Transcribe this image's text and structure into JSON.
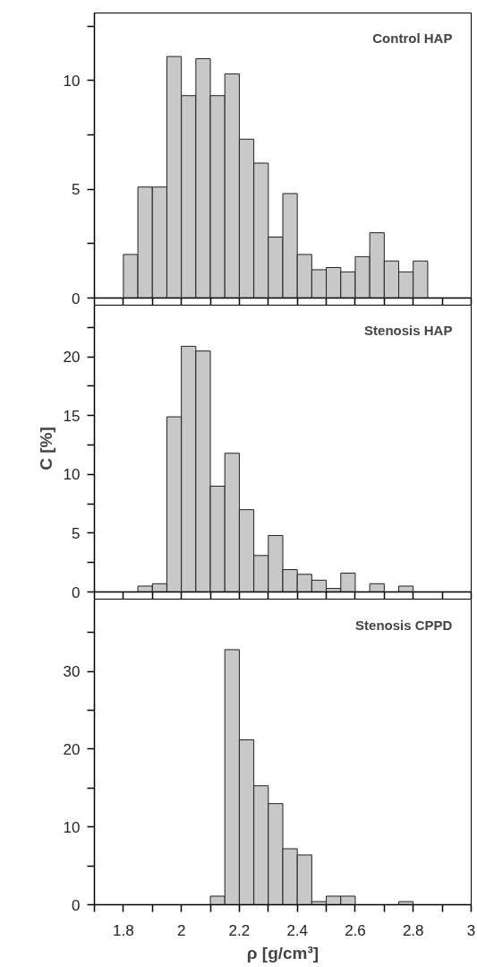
{
  "chart_data": [
    {
      "type": "histogram",
      "title": "Control HAP",
      "color": "#c8c8c8",
      "bins": [
        1.8,
        1.85,
        1.9,
        1.95,
        2.0,
        2.05,
        2.1,
        2.15,
        2.2,
        2.25,
        2.3,
        2.35,
        2.4,
        2.45,
        2.5,
        2.55,
        2.6,
        2.65,
        2.7,
        2.75,
        2.8,
        2.85
      ],
      "values": [
        2.0,
        5.1,
        5.1,
        11.1,
        9.3,
        11.0,
        9.3,
        10.3,
        7.3,
        6.2,
        2.8,
        4.8,
        2.0,
        1.3,
        1.4,
        1.2,
        1.9,
        3.0,
        1.7,
        1.2,
        1.7
      ],
      "xlim": [
        1.7,
        3.0
      ],
      "xticks": [
        {
          "value": 1.7,
          "label": null
        },
        1.8,
        {
          "value": 1.9,
          "label": null
        },
        2,
        {
          "value": 2.1,
          "label": null
        },
        2.2,
        {
          "value": 2.3,
          "label": null
        },
        2.4,
        {
          "value": 2.5,
          "label": null
        },
        2.6,
        {
          "value": 2.7,
          "label": null
        },
        2.8,
        {
          "value": 2.9,
          "label": null
        },
        3
      ],
      "ylim": [
        0,
        13.1
      ],
      "yticks": [
        0,
        {
          "value": 2.5,
          "label": null
        },
        5,
        {
          "value": 7.5,
          "label": null
        },
        10,
        {
          "value": 12.5,
          "label": null
        }
      ],
      "tick_labels": "y",
      "grid": false
    },
    {
      "type": "histogram",
      "title": "Stenosis HAP",
      "ylabel": "C [%]",
      "color": "#c8c8c8",
      "bins": [
        1.85,
        1.9,
        1.95,
        2.0,
        2.05,
        2.1,
        2.15,
        2.2,
        2.25,
        2.3,
        2.35,
        2.4,
        2.45,
        2.5,
        2.55,
        2.6,
        2.65,
        2.7,
        2.75,
        2.8
      ],
      "values": [
        0.5,
        0.7,
        14.9,
        20.9,
        20.5,
        9.0,
        11.8,
        7.0,
        3.1,
        4.8,
        1.9,
        1.5,
        1.0,
        0.3,
        1.6,
        0,
        0.7,
        0,
        0.5
      ],
      "xlim": [
        1.7,
        3.0
      ],
      "xticks": [
        {
          "value": 1.7,
          "label": null
        },
        1.8,
        {
          "value": 1.9,
          "label": null
        },
        2,
        {
          "value": 2.1,
          "label": null
        },
        2.2,
        {
          "value": 2.3,
          "label": null
        },
        2.4,
        {
          "value": 2.5,
          "label": null
        },
        2.6,
        {
          "value": 2.7,
          "label": null
        },
        2.8,
        {
          "value": 2.9,
          "label": null
        },
        3
      ],
      "ylim": [
        0,
        24.4
      ],
      "yticks": [
        0,
        {
          "value": 2.5,
          "label": null
        },
        5,
        {
          "value": 7.5,
          "label": null
        },
        10,
        {
          "value": 12.5,
          "label": null
        },
        15,
        {
          "value": 17.5,
          "label": null
        },
        20,
        {
          "value": 22.5,
          "label": null
        }
      ],
      "tick_labels": "y",
      "grid": false
    },
    {
      "type": "histogram",
      "title": "Stenosis CPPD",
      "xlabel": "ρ [g/cm³]",
      "color": "#c8c8c8",
      "bins": [
        2.1,
        2.15,
        2.2,
        2.25,
        2.3,
        2.35,
        2.4,
        2.45,
        2.5,
        2.55,
        2.6,
        2.65,
        2.7,
        2.75,
        2.8
      ],
      "values": [
        1.1,
        32.8,
        21.2,
        15.3,
        13.0,
        7.2,
        6.4,
        0.4,
        1.1,
        1.1,
        0,
        0,
        0,
        0.4
      ],
      "xlim": [
        1.7,
        3.0
      ],
      "xticks": [
        {
          "value": 1.7,
          "label": null
        },
        1.8,
        {
          "value": 1.9,
          "label": null
        },
        2,
        {
          "value": 2.1,
          "label": null
        },
        2.2,
        {
          "value": 2.3,
          "label": null
        },
        2.4,
        {
          "value": 2.5,
          "label": null
        },
        2.6,
        {
          "value": 2.7,
          "label": null
        },
        2.8,
        {
          "value": 2.9,
          "label": null
        },
        3
      ],
      "ylim": [
        0,
        39.3
      ],
      "yticks": [
        0,
        {
          "value": 5,
          "label": null
        },
        10,
        {
          "value": 15,
          "label": null
        },
        20,
        {
          "value": 25,
          "label": null
        },
        30,
        {
          "value": 35,
          "label": null
        }
      ],
      "grid": false
    }
  ]
}
